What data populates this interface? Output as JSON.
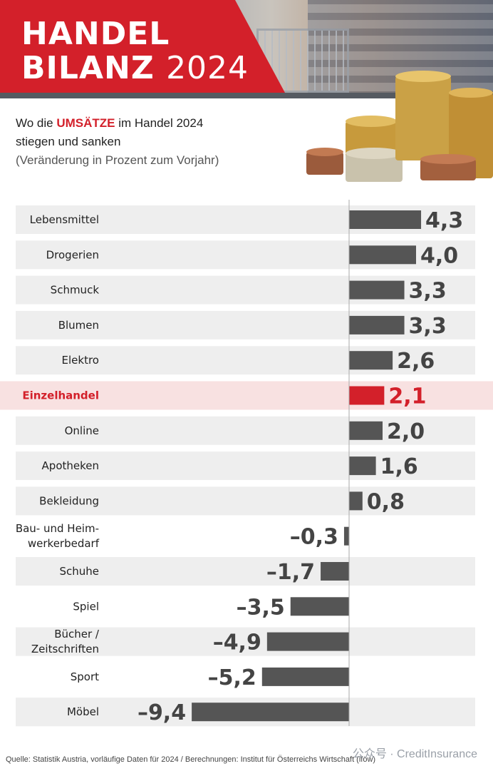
{
  "header": {
    "title_line1": "HANDEL",
    "title_line2_word": "BILANZ",
    "title_year": "2024"
  },
  "subtitle": {
    "prefix": "Wo die ",
    "highlight": "UMSÄTZE",
    "suffix": " im Handel 2024",
    "line2": "stiegen und sanken",
    "note": "(Veränderung in Prozent zum Vorjahr)"
  },
  "chart_data": {
    "type": "bar",
    "orientation": "horizontal",
    "categories": [
      "Lebensmittel",
      "Drogerien",
      "Schmuck",
      "Blumen",
      "Elektro",
      "Einzelhandel",
      "Online",
      "Apotheken",
      "Bekleidung",
      "Bau- und Heimwerkerbedarf",
      "Schuhe",
      "Spiel",
      "Bücher / Zeitschriften",
      "Sport",
      "Möbel"
    ],
    "category_lines": [
      [
        "Lebensmittel"
      ],
      [
        "Drogerien"
      ],
      [
        "Schmuck"
      ],
      [
        "Blumen"
      ],
      [
        "Elektro"
      ],
      [
        "Einzelhandel"
      ],
      [
        "Online"
      ],
      [
        "Apotheken"
      ],
      [
        "Bekleidung"
      ],
      [
        "Bau- und Heim-",
        "werkerbedarf"
      ],
      [
        "Schuhe"
      ],
      [
        "Spiel"
      ],
      [
        "Bücher /",
        "Zeitschriften"
      ],
      [
        "Sport"
      ],
      [
        "Möbel"
      ]
    ],
    "values": [
      4.3,
      4.0,
      3.3,
      3.3,
      2.6,
      2.1,
      2.0,
      1.6,
      0.8,
      -0.3,
      -1.7,
      -3.5,
      -4.9,
      -5.2,
      -9.4
    ],
    "value_labels": [
      "4,3",
      "4,0",
      "3,3",
      "3,3",
      "2,6",
      "2,1",
      "2,0",
      "1,6",
      "0,8",
      "–0,3",
      "–1,7",
      "–3,5",
      "–4,9",
      "–5,2",
      "–9,4"
    ],
    "highlight_category": "Einzelhandel",
    "colors": {
      "bar": "#555555",
      "highlight": "#d3202a",
      "row_band": "#eeeeee",
      "highlight_band": "#f8e1e1"
    }
  },
  "footer": {
    "source": "Quelle: Statistik Austria, vorläufige Daten für 2024 / Berechnungen: Institut für Österreichs Wirtschaft (iföw)",
    "watermark": "公众号 · CreditInsurance"
  }
}
